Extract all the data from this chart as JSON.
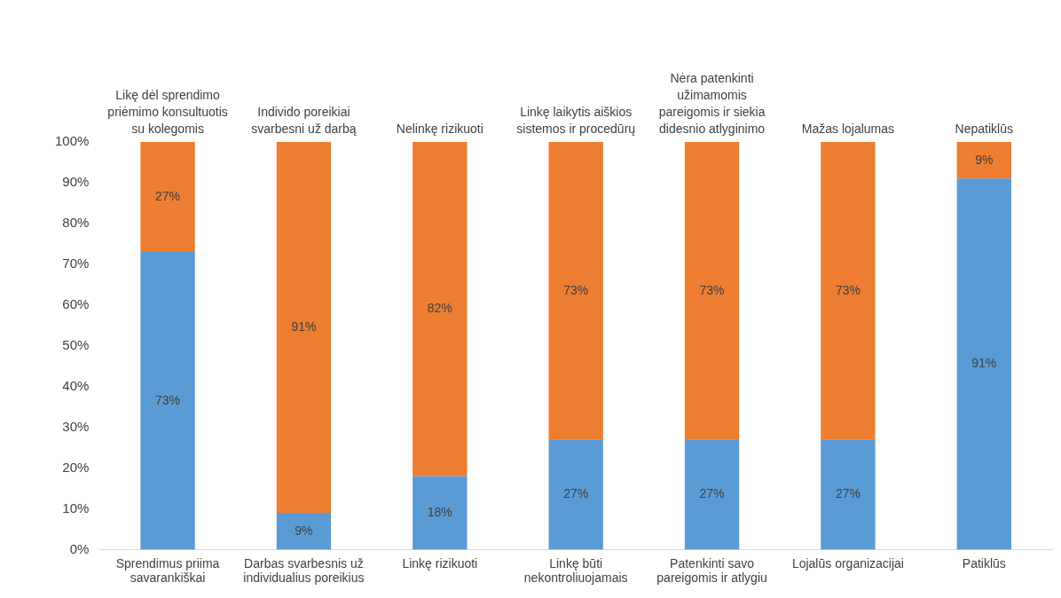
{
  "chart_data": {
    "type": "bar",
    "stacked": true,
    "categories": [
      "Sprendimus priima savarankiškai",
      "Darbas svarbesnis už individualius poreikius",
      "Linkę rizikuoti",
      "Linkę būti nekontroliuojamais",
      "Patenkinti savo pareigomis ir atlygiu",
      "Lojalūs organizacijai",
      "Patiklūs"
    ],
    "series": [
      {
        "color": "#5b9bd5",
        "values": [
          73,
          9,
          18,
          27,
          27,
          27,
          91
        ],
        "value_labels": [
          "73%",
          "9%",
          "18%",
          "27%",
          "27%",
          "27%",
          "91%"
        ]
      },
      {
        "color": "#ed7d31",
        "values": [
          27,
          91,
          82,
          73,
          73,
          73,
          9
        ],
        "value_labels": [
          "27%",
          "91%",
          "82%",
          "73%",
          "73%",
          "73%",
          "9%"
        ]
      }
    ],
    "ylim": [
      0,
      100
    ],
    "yticks": [
      {
        "value": 0,
        "label": "0%"
      },
      {
        "value": 10,
        "label": "10%"
      },
      {
        "value": 20,
        "label": "20%"
      },
      {
        "value": 30,
        "label": "30%"
      },
      {
        "value": 40,
        "label": "40%"
      },
      {
        "value": 50,
        "label": "50%"
      },
      {
        "value": 60,
        "label": "60%"
      },
      {
        "value": 70,
        "label": "70%"
      },
      {
        "value": 80,
        "label": "80%"
      },
      {
        "value": 90,
        "label": "90%"
      },
      {
        "value": 100,
        "label": "100%"
      }
    ],
    "annotations": [
      {
        "text": "Likę dėl sprendimo priėmimo konsultuotis su kolegomis",
        "x": "Sprendimus priima savarankiškai",
        "y": 100
      },
      {
        "text": "Individo poreikiai svarbesni už darbą",
        "x": "Darbas svarbesnis už individualius poreikius",
        "y": 100
      },
      {
        "text": "Nelinkę rizikuoti",
        "x": "Linkę rizikuoti",
        "y": 100
      },
      {
        "text": "Linkę laikytis aiškios sistemos ir procedūrų",
        "x": "Linkę būti nekontroliuojamais",
        "y": 100
      },
      {
        "text": "Nėra patenkinti užimamomis pareigomis ir siekia didesnio atlyginimo",
        "x": "Patenkinti savo pareigomis ir atlygiu",
        "y": 100
      },
      {
        "text": "Mažas lojalumas",
        "x": "Lojalūs organizacijai",
        "y": 100
      },
      {
        "text": "Nepatiklūs",
        "x": "Patiklūs",
        "y": 100
      }
    ],
    "grid": false,
    "legend": false
  }
}
